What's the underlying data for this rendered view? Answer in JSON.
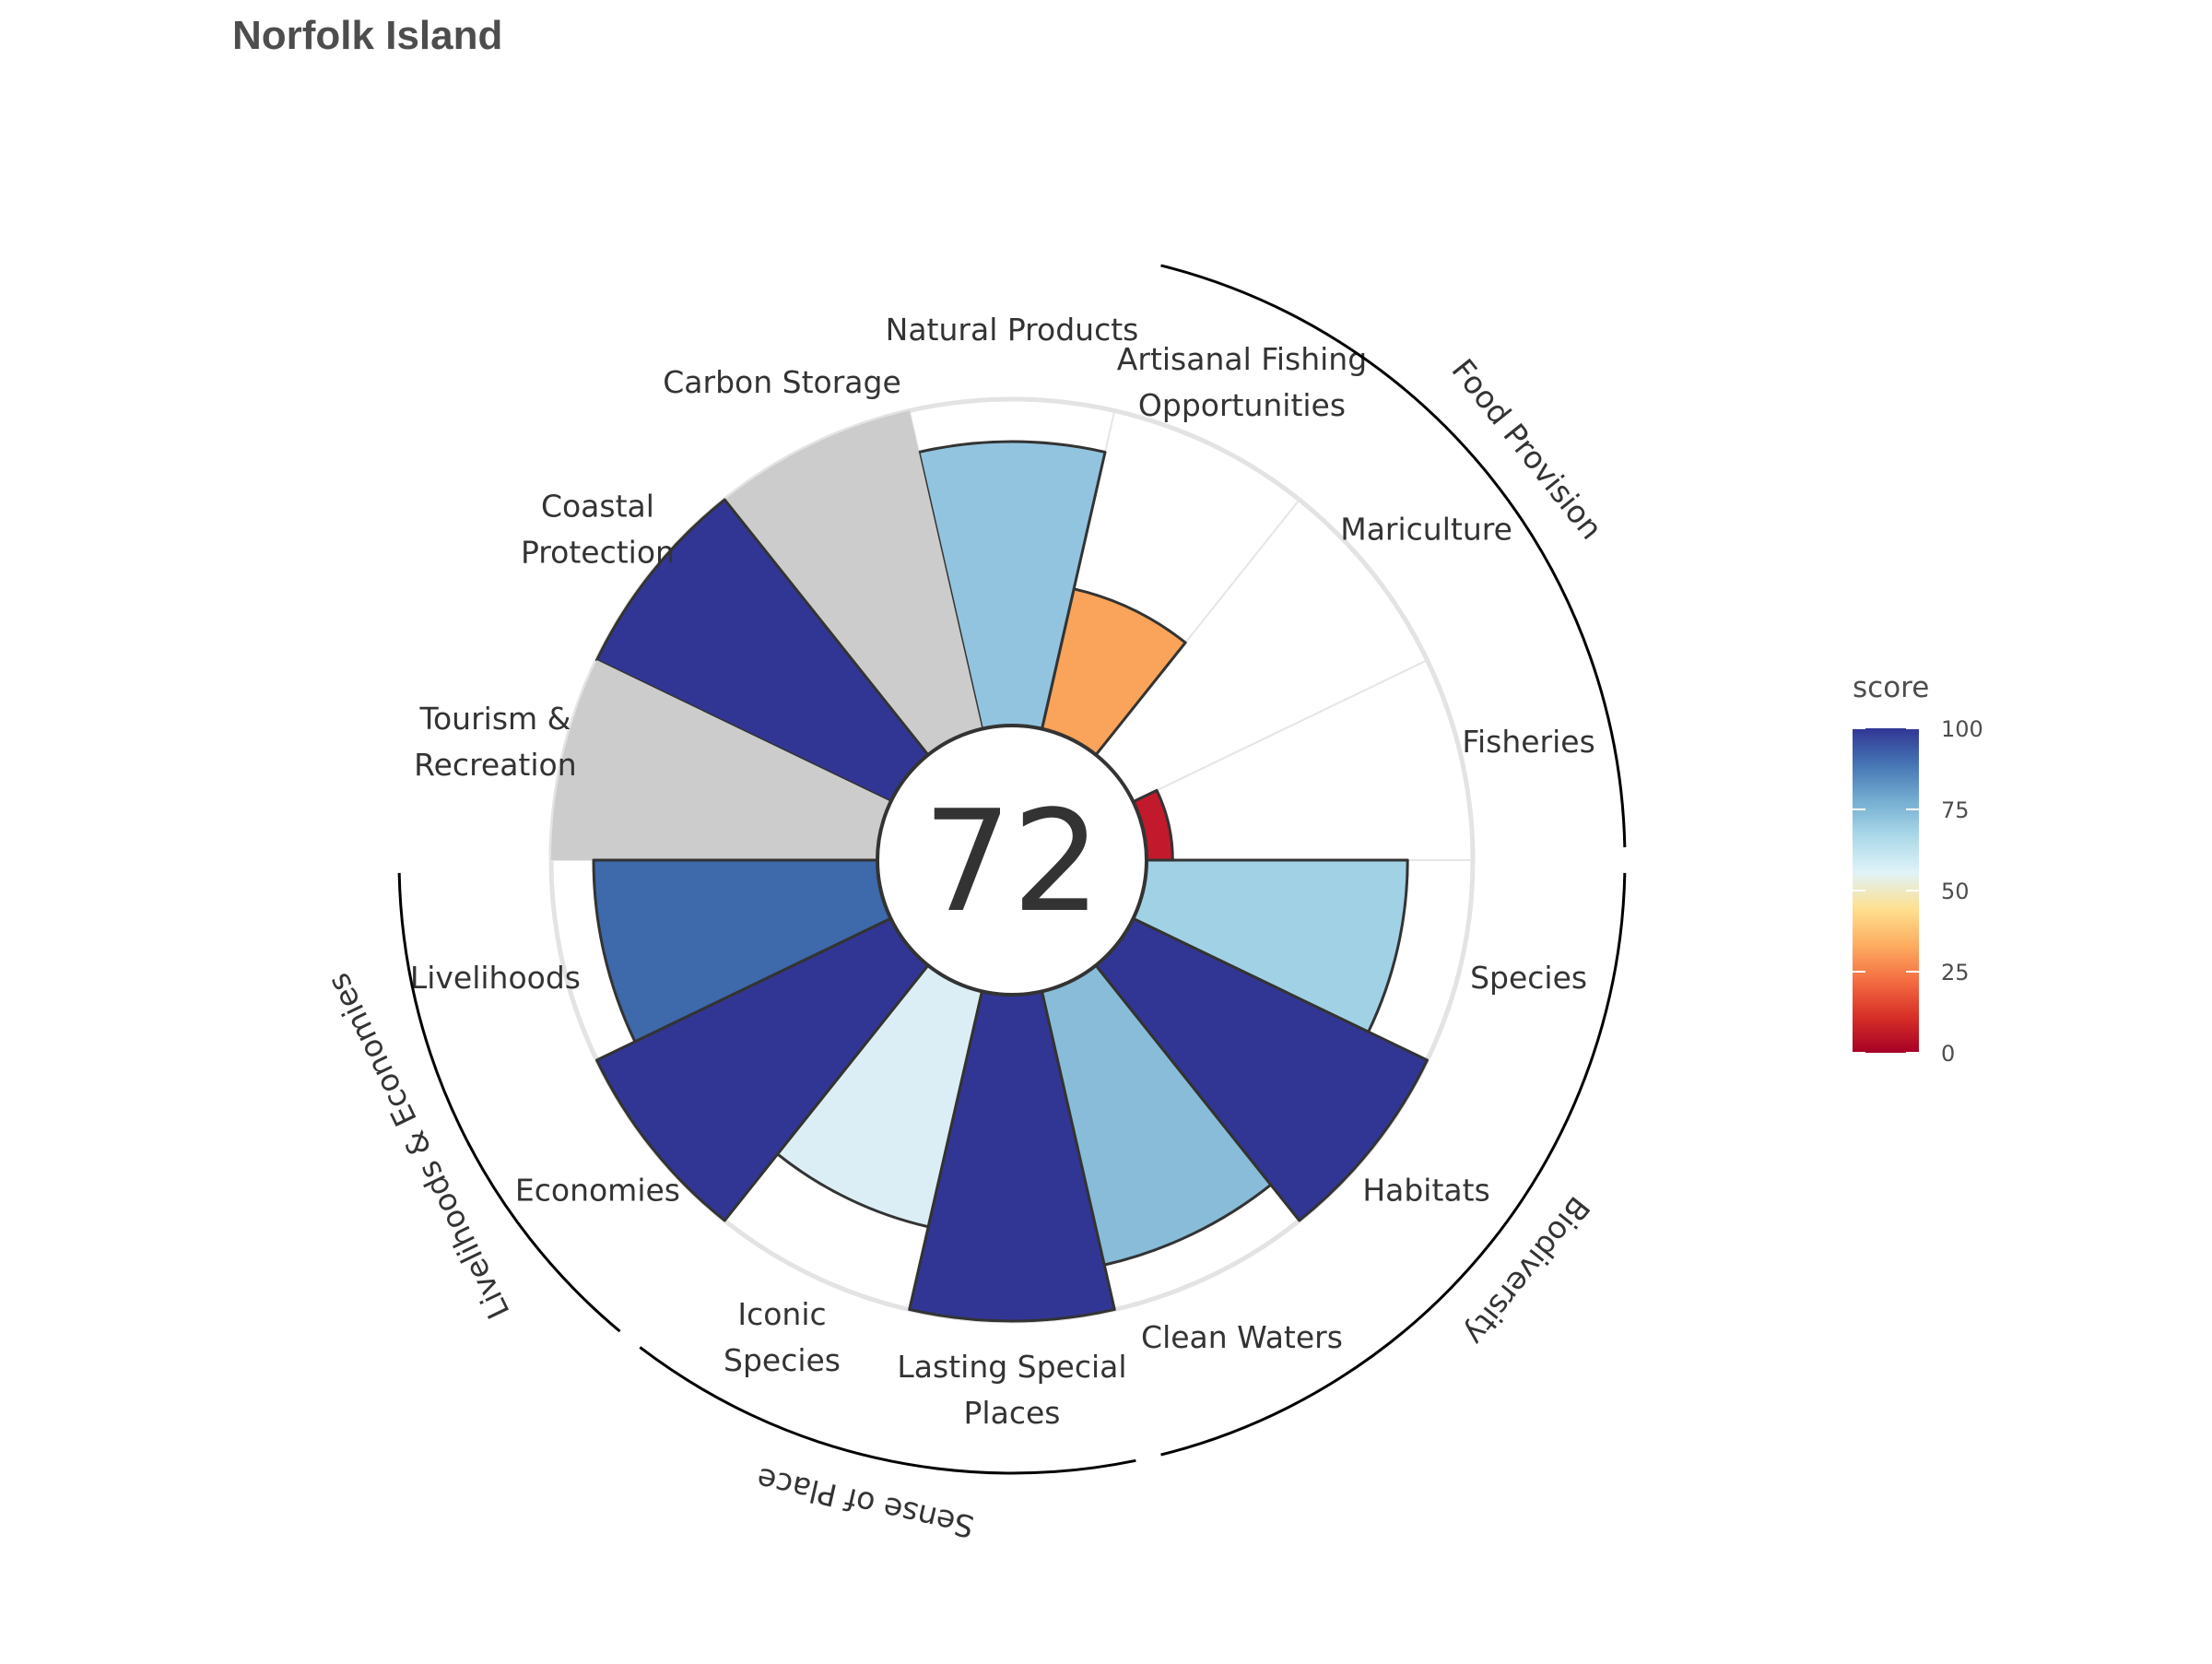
{
  "title": "Norfolk Island",
  "chart_data": {
    "type": "polar-bar",
    "title": "Norfolk Island",
    "overall_score": "72",
    "score_range": [
      0,
      100
    ],
    "goals": [
      {
        "name": "Fisheries",
        "label_lines": [
          "Fisheries"
        ],
        "score": 8,
        "color": "#c3192c",
        "na": false
      },
      {
        "name": "Mariculture",
        "label_lines": [
          "Mariculture"
        ],
        "score": null,
        "color": "#ffffff",
        "na": true
      },
      {
        "name": "Artisanal Fishing Opportunities",
        "label_lines": [
          "Artisanal Fishing",
          "Opportunities"
        ],
        "score": 44,
        "color": "#f9a45a",
        "na": false
      },
      {
        "name": "Natural Products",
        "label_lines": [
          "Natural Products"
        ],
        "score": 87,
        "color": "#92c4e0",
        "na": false
      },
      {
        "name": "Carbon Storage",
        "label_lines": [
          "Carbon Storage"
        ],
        "score": 100,
        "color": "#cccccc",
        "na": true
      },
      {
        "name": "Coastal Protection",
        "label_lines": [
          "Coastal",
          "Protection"
        ],
        "score": 100,
        "color": "#313695",
        "na": false
      },
      {
        "name": "Tourism & Recreation",
        "label_lines": [
          "Tourism &",
          "Recreation"
        ],
        "score": 100,
        "color": "#cccccc",
        "na": true
      },
      {
        "name": "Livelihoods",
        "label_lines": [
          "Livelihoods"
        ],
        "score": 87,
        "color": "#3e69ab",
        "na": false
      },
      {
        "name": "Economies",
        "label_lines": [
          "Economies"
        ],
        "score": 100,
        "color": "#313695",
        "na": false
      },
      {
        "name": "Iconic Species",
        "label_lines": [
          "Iconic",
          "Species"
        ],
        "score": 74,
        "color": "#dbeef6",
        "na": false
      },
      {
        "name": "Lasting Special Places",
        "label_lines": [
          "Lasting Special",
          "Places"
        ],
        "score": 100,
        "color": "#313695",
        "na": false
      },
      {
        "name": "Clean Waters",
        "label_lines": [
          "Clean Waters"
        ],
        "score": 86,
        "color": "#88bcd9",
        "na": false
      },
      {
        "name": "Habitats",
        "label_lines": [
          "Habitats"
        ],
        "score": 100,
        "color": "#313695",
        "na": false
      },
      {
        "name": "Species",
        "label_lines": [
          "Species"
        ],
        "score": 80,
        "color": "#a1d1e5",
        "na": false
      }
    ],
    "groups": [
      {
        "name": "Food Provision",
        "label": "Food Provision"
      },
      {
        "name": "Biodiversity",
        "label": "Biodiversity"
      },
      {
        "name": "Sense of Place",
        "label": "Sense of Place"
      },
      {
        "name": "Livelihoods & Economies",
        "label": "Livelihoods & Economies"
      }
    ],
    "legend": {
      "title": "score",
      "ticks": [
        "0",
        "25",
        "50",
        "75",
        "100"
      ],
      "colors": [
        "#a50026",
        "#d73027",
        "#f46d43",
        "#fdae61",
        "#fee090",
        "#e0f3f8",
        "#abd9e9",
        "#74add1",
        "#4575b4",
        "#313695"
      ]
    }
  }
}
